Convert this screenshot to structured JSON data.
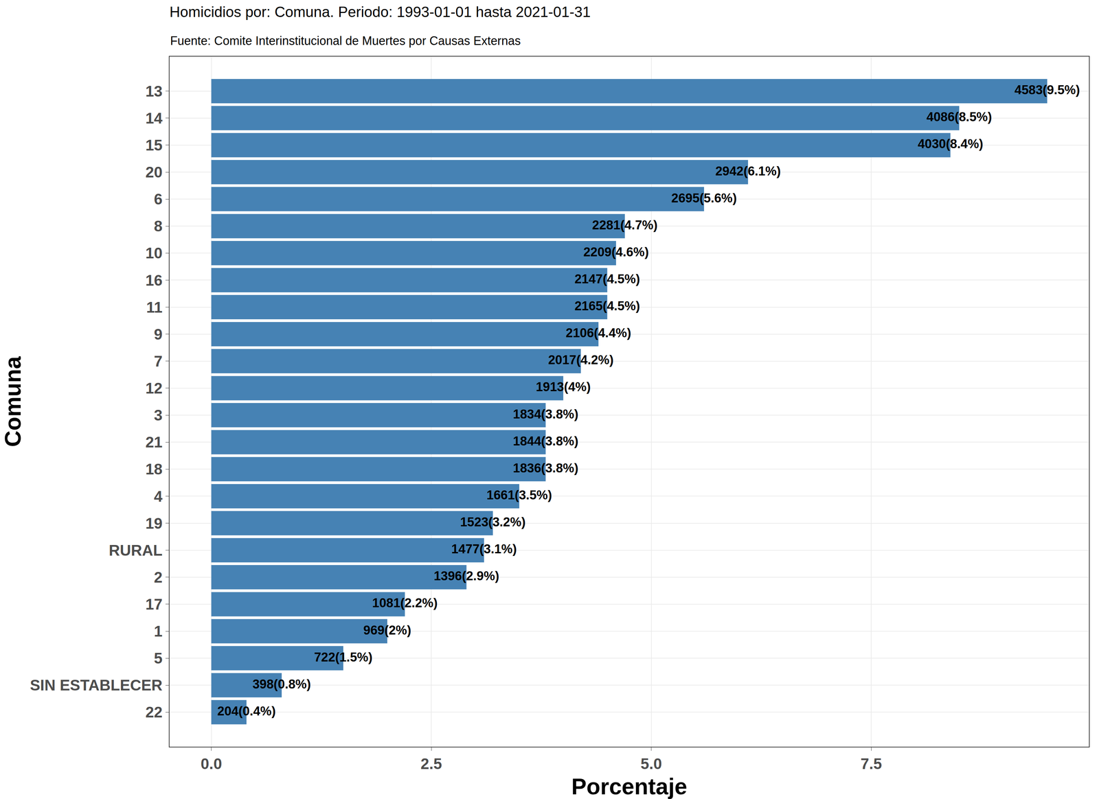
{
  "chart_data": {
    "type": "bar",
    "orientation": "horizontal",
    "title": "Homicidios por: Comuna. Periodo: 1993-01-01 hasta 2021-01-31",
    "subtitle": "Fuente: Comite Interinstitucional de Muertes por Causas Externas",
    "x_label": "Porcentaje",
    "y_label": "Comuna",
    "categories": [
      "13",
      "14",
      "15",
      "20",
      "6",
      "8",
      "10",
      "16",
      "11",
      "9",
      "7",
      "12",
      "3",
      "21",
      "18",
      "4",
      "19",
      "RURAL",
      "2",
      "17",
      "1",
      "5",
      "SIN ESTABLECER",
      "22"
    ],
    "values": [
      9.5,
      8.5,
      8.4,
      6.1,
      5.6,
      4.7,
      4.6,
      4.5,
      4.5,
      4.4,
      4.2,
      4.0,
      3.8,
      3.8,
      3.8,
      3.5,
      3.2,
      3.1,
      2.9,
      2.2,
      2.0,
      1.5,
      0.8,
      0.4
    ],
    "value_labels": [
      "4583(9.5%)",
      "4086(8.5%)",
      "4030(8.4%)",
      "2942(6.1%)",
      "2695(5.6%)",
      "2281(4.7%)",
      "2209(4.6%)",
      "2147(4.5%)",
      "2165(4.5%)",
      "2106(4.4%)",
      "2017(4.2%)",
      "1913(4%)",
      "1834(3.8%)",
      "1844(3.8%)",
      "1836(3.8%)",
      "1661(3.5%)",
      "1523(3.2%)",
      "1477(3.1%)",
      "1396(2.9%)",
      "1081(2.2%)",
      "969(2%)",
      "722(1.5%)",
      "398(0.8%)",
      "204(0.4%)"
    ],
    "color": "#4682b4",
    "data_labels": true,
    "grid": true,
    "xlim": [
      -0.475,
      9.975
    ],
    "xticks": [
      {
        "value": 0,
        "label": "0.0"
      },
      2.5,
      {
        "value": 5,
        "label": "5.0"
      },
      7.5
    ]
  }
}
